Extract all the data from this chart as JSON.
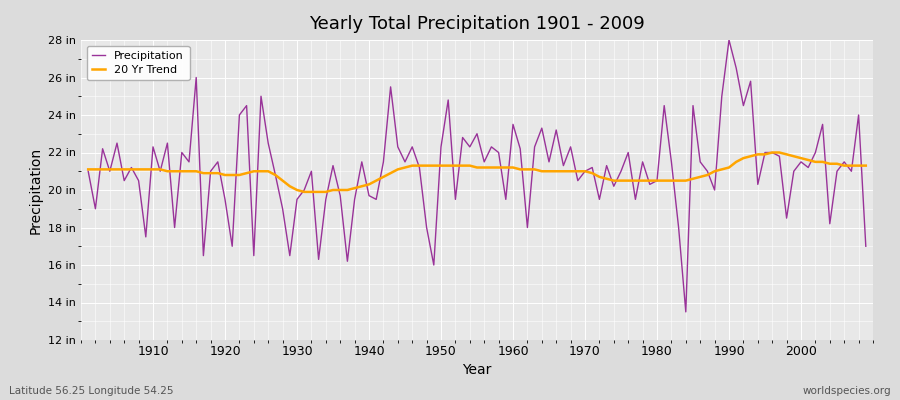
{
  "title": "Yearly Total Precipitation 1901 - 2009",
  "xlabel": "Year",
  "ylabel": "Precipitation",
  "subtitle_left": "Latitude 56.25 Longitude 54.25",
  "subtitle_right": "worldspecies.org",
  "ylim": [
    12,
    28
  ],
  "yticks": [
    12,
    14,
    16,
    18,
    20,
    22,
    24,
    26,
    28
  ],
  "ytick_labels": [
    "12 in",
    "14 in",
    "16 in",
    "18 in",
    "20 in",
    "22 in",
    "24 in",
    "26 in",
    "28 in"
  ],
  "xlim": [
    1900,
    2010
  ],
  "precip_color": "#993399",
  "trend_color": "#FFA500",
  "bg_color": "#DCDCDC",
  "plot_bg_color": "#E8E8E8",
  "grid_color": "#FFFFFF",
  "years": [
    1901,
    1902,
    1903,
    1904,
    1905,
    1906,
    1907,
    1908,
    1909,
    1910,
    1911,
    1912,
    1913,
    1914,
    1915,
    1916,
    1917,
    1918,
    1919,
    1920,
    1921,
    1922,
    1923,
    1924,
    1925,
    1926,
    1927,
    1928,
    1929,
    1930,
    1931,
    1932,
    1933,
    1934,
    1935,
    1936,
    1937,
    1938,
    1939,
    1940,
    1941,
    1942,
    1943,
    1944,
    1945,
    1946,
    1947,
    1948,
    1949,
    1950,
    1951,
    1952,
    1953,
    1954,
    1955,
    1956,
    1957,
    1958,
    1959,
    1960,
    1961,
    1962,
    1963,
    1964,
    1965,
    1966,
    1967,
    1968,
    1969,
    1970,
    1971,
    1972,
    1973,
    1974,
    1975,
    1976,
    1977,
    1978,
    1979,
    1980,
    1981,
    1982,
    1983,
    1984,
    1985,
    1986,
    1987,
    1988,
    1989,
    1990,
    1991,
    1992,
    1993,
    1994,
    1995,
    1996,
    1997,
    1998,
    1999,
    2000,
    2001,
    2002,
    2003,
    2004,
    2005,
    2006,
    2007,
    2008,
    2009
  ],
  "precip": [
    21.0,
    19.0,
    22.2,
    21.0,
    22.5,
    20.5,
    21.2,
    20.5,
    17.5,
    22.3,
    21.0,
    22.5,
    18.0,
    22.0,
    21.5,
    26.0,
    16.5,
    21.0,
    21.5,
    19.5,
    17.0,
    24.0,
    24.5,
    16.5,
    25.0,
    22.5,
    20.8,
    19.0,
    16.5,
    19.5,
    20.0,
    21.0,
    16.3,
    19.5,
    21.3,
    19.7,
    16.2,
    19.5,
    21.5,
    19.7,
    19.5,
    21.5,
    25.5,
    22.3,
    21.5,
    22.3,
    21.2,
    18.0,
    16.0,
    22.3,
    24.8,
    19.5,
    22.8,
    22.3,
    23.0,
    21.5,
    22.3,
    22.0,
    19.5,
    23.5,
    22.2,
    18.0,
    22.3,
    23.3,
    21.5,
    23.2,
    21.3,
    22.3,
    20.5,
    21.0,
    21.2,
    19.5,
    21.3,
    20.2,
    21.0,
    22.0,
    19.5,
    21.5,
    20.3,
    20.5,
    24.5,
    21.5,
    18.0,
    13.5,
    24.5,
    21.5,
    21.0,
    20.0,
    25.0,
    28.0,
    26.5,
    24.5,
    25.8,
    20.3,
    22.0,
    22.0,
    21.8,
    18.5,
    21.0,
    21.5,
    21.2,
    22.0,
    23.5,
    18.2,
    21.0,
    21.5,
    21.0,
    24.0,
    17.0
  ],
  "trend": [
    21.1,
    21.1,
    21.1,
    21.1,
    21.1,
    21.1,
    21.1,
    21.1,
    21.1,
    21.1,
    21.1,
    21.0,
    21.0,
    21.0,
    21.0,
    21.0,
    20.9,
    20.9,
    20.9,
    20.8,
    20.8,
    20.8,
    20.9,
    21.0,
    21.0,
    21.0,
    20.8,
    20.5,
    20.2,
    20.0,
    19.9,
    19.9,
    19.9,
    19.9,
    20.0,
    20.0,
    20.0,
    20.1,
    20.2,
    20.3,
    20.5,
    20.7,
    20.9,
    21.1,
    21.2,
    21.3,
    21.3,
    21.3,
    21.3,
    21.3,
    21.3,
    21.3,
    21.3,
    21.3,
    21.2,
    21.2,
    21.2,
    21.2,
    21.2,
    21.2,
    21.1,
    21.1,
    21.1,
    21.0,
    21.0,
    21.0,
    21.0,
    21.0,
    21.0,
    21.0,
    20.9,
    20.7,
    20.6,
    20.5,
    20.5,
    20.5,
    20.5,
    20.5,
    20.5,
    20.5,
    20.5,
    20.5,
    20.5,
    20.5,
    20.6,
    20.7,
    20.8,
    21.0,
    21.1,
    21.2,
    21.5,
    21.7,
    21.8,
    21.9,
    21.9,
    22.0,
    22.0,
    21.9,
    21.8,
    21.7,
    21.6,
    21.5,
    21.5,
    21.4,
    21.4,
    21.3,
    21.3,
    21.3,
    21.3
  ]
}
